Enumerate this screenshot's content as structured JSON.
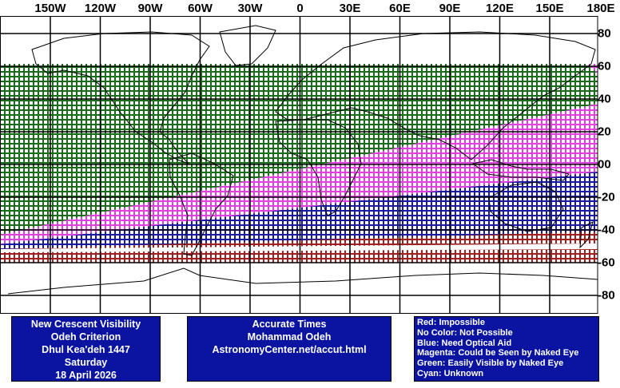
{
  "map": {
    "lon_labels": [
      "150W",
      "120W",
      "90W",
      "60W",
      "30W",
      "0",
      "30E",
      "60E",
      "90E",
      "120E",
      "150E",
      "180E"
    ],
    "lat_labels": [
      "80",
      "60",
      "40",
      "20",
      "00",
      "-20",
      "-40",
      "-60",
      "-80"
    ],
    "zone_colors": {
      "green": "#1a6b1a",
      "magenta": "#e040e0",
      "blue": "#1a1aa0",
      "red": "#a02020",
      "grid": "#000000",
      "coast": "#000000"
    }
  },
  "info_left": {
    "line1": "New Crescent Visibility",
    "line2": "Odeh Criterion",
    "line3": "Dhul Kea'deh 1447",
    "line4": "Saturday",
    "line5": "18 April 2026"
  },
  "info_mid": {
    "line1": "Accurate Times",
    "line2": "Mohammad Odeh",
    "line3": "AstronomyCenter.net/accut.html"
  },
  "legend": {
    "red": "Red: Impossible",
    "none": "No Color: Not Possible",
    "blue": "Blue: Need Optical Aid",
    "magenta": "Magenta: Could be Seen by Naked Eye",
    "green": "Green: Easily Visible by Naked Eye",
    "cyan": "Cyan: Unknown"
  },
  "box_color": "#0a14a0"
}
